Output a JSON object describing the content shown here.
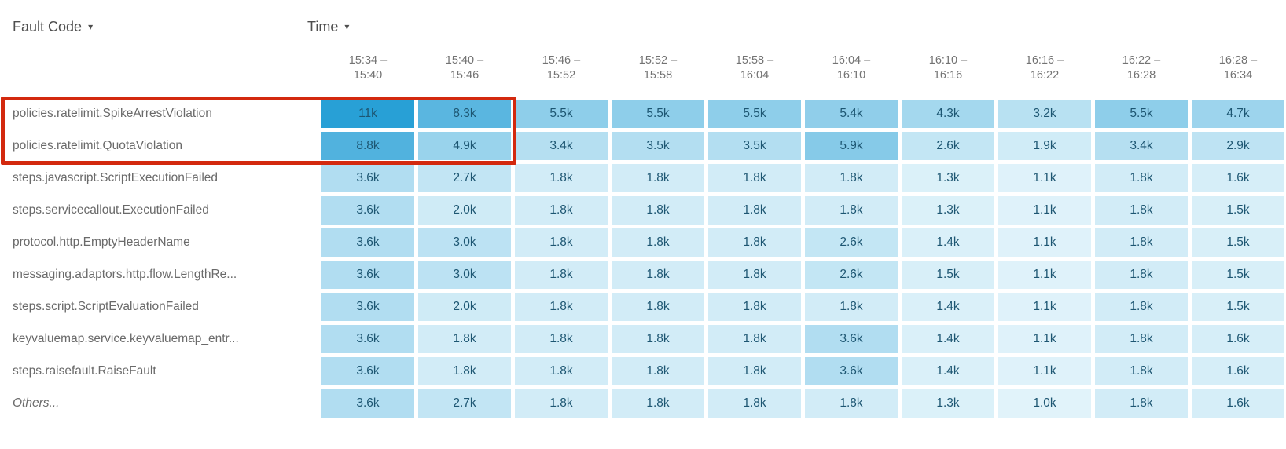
{
  "header": {
    "fault_code_label": "Fault Code",
    "time_label": "Time",
    "caret_icon": "▾"
  },
  "chart_data": {
    "type": "heatmap",
    "row_axis_label": "Fault Code",
    "column_axis_label": "Time",
    "columns": [
      "15:34 – 15:40",
      "15:40 – 15:46",
      "15:46 – 15:52",
      "15:52 – 15:58",
      "15:58 – 16:04",
      "16:04 – 16:10",
      "16:10 – 16:16",
      "16:16 – 16:22",
      "16:22 – 16:28",
      "16:28 – 16:34"
    ],
    "rows": [
      {
        "label": "policies.ratelimit.SpikeArrestViolation",
        "italic": false
      },
      {
        "label": "policies.ratelimit.QuotaViolation",
        "italic": false
      },
      {
        "label": "steps.javascript.ScriptExecutionFailed",
        "italic": false
      },
      {
        "label": "steps.servicecallout.ExecutionFailed",
        "italic": false
      },
      {
        "label": "protocol.http.EmptyHeaderName",
        "italic": false
      },
      {
        "label": "messaging.adaptors.http.flow.LengthRe...",
        "italic": false
      },
      {
        "label": "steps.script.ScriptEvaluationFailed",
        "italic": false
      },
      {
        "label": "keyvaluemap.service.keyvaluemap_entr...",
        "italic": false
      },
      {
        "label": "steps.raisefault.RaiseFault",
        "italic": false
      },
      {
        "label": "Others...",
        "italic": true
      }
    ],
    "values_display": [
      [
        "11k",
        "8.3k",
        "5.5k",
        "5.5k",
        "5.5k",
        "5.4k",
        "4.3k",
        "3.2k",
        "5.5k",
        "4.7k"
      ],
      [
        "8.8k",
        "4.9k",
        "3.4k",
        "3.5k",
        "3.5k",
        "5.9k",
        "2.6k",
        "1.9k",
        "3.4k",
        "2.9k"
      ],
      [
        "3.6k",
        "2.7k",
        "1.8k",
        "1.8k",
        "1.8k",
        "1.8k",
        "1.3k",
        "1.1k",
        "1.8k",
        "1.6k"
      ],
      [
        "3.6k",
        "2.0k",
        "1.8k",
        "1.8k",
        "1.8k",
        "1.8k",
        "1.3k",
        "1.1k",
        "1.8k",
        "1.5k"
      ],
      [
        "3.6k",
        "3.0k",
        "1.8k",
        "1.8k",
        "1.8k",
        "2.6k",
        "1.4k",
        "1.1k",
        "1.8k",
        "1.5k"
      ],
      [
        "3.6k",
        "3.0k",
        "1.8k",
        "1.8k",
        "1.8k",
        "2.6k",
        "1.5k",
        "1.1k",
        "1.8k",
        "1.5k"
      ],
      [
        "3.6k",
        "2.0k",
        "1.8k",
        "1.8k",
        "1.8k",
        "1.8k",
        "1.4k",
        "1.1k",
        "1.8k",
        "1.5k"
      ],
      [
        "3.6k",
        "1.8k",
        "1.8k",
        "1.8k",
        "1.8k",
        "3.6k",
        "1.4k",
        "1.1k",
        "1.8k",
        "1.6k"
      ],
      [
        "3.6k",
        "1.8k",
        "1.8k",
        "1.8k",
        "1.8k",
        "3.6k",
        "1.4k",
        "1.1k",
        "1.8k",
        "1.6k"
      ],
      [
        "3.6k",
        "2.7k",
        "1.8k",
        "1.8k",
        "1.8k",
        "1.8k",
        "1.3k",
        "1.0k",
        "1.8k",
        "1.6k"
      ]
    ],
    "values": [
      [
        11000,
        8300,
        5500,
        5500,
        5500,
        5400,
        4300,
        3200,
        5500,
        4700
      ],
      [
        8800,
        4900,
        3400,
        3500,
        3500,
        5900,
        2600,
        1900,
        3400,
        2900
      ],
      [
        3600,
        2700,
        1800,
        1800,
        1800,
        1800,
        1300,
        1100,
        1800,
        1600
      ],
      [
        3600,
        2000,
        1800,
        1800,
        1800,
        1800,
        1300,
        1100,
        1800,
        1500
      ],
      [
        3600,
        3000,
        1800,
        1800,
        1800,
        2600,
        1400,
        1100,
        1800,
        1500
      ],
      [
        3600,
        3000,
        1800,
        1800,
        1800,
        2600,
        1500,
        1100,
        1800,
        1500
      ],
      [
        3600,
        2000,
        1800,
        1800,
        1800,
        1800,
        1400,
        1100,
        1800,
        1500
      ],
      [
        3600,
        1800,
        1800,
        1800,
        1800,
        3600,
        1400,
        1100,
        1800,
        1600
      ],
      [
        3600,
        1800,
        1800,
        1800,
        1800,
        3600,
        1400,
        1100,
        1800,
        1600
      ],
      [
        3600,
        2700,
        1800,
        1800,
        1800,
        1800,
        1300,
        1000,
        1800,
        1600
      ]
    ],
    "color_scale": {
      "min_value": 1000,
      "max_value": 11000,
      "min_color": "#e1f3fa",
      "max_color": "#28a0d6"
    },
    "cell_text_color": "#1d5672",
    "highlight": {
      "border_color": "#d3290e",
      "row_indexes": [
        0,
        1
      ],
      "column_indexes": [
        0,
        1
      ]
    }
  }
}
